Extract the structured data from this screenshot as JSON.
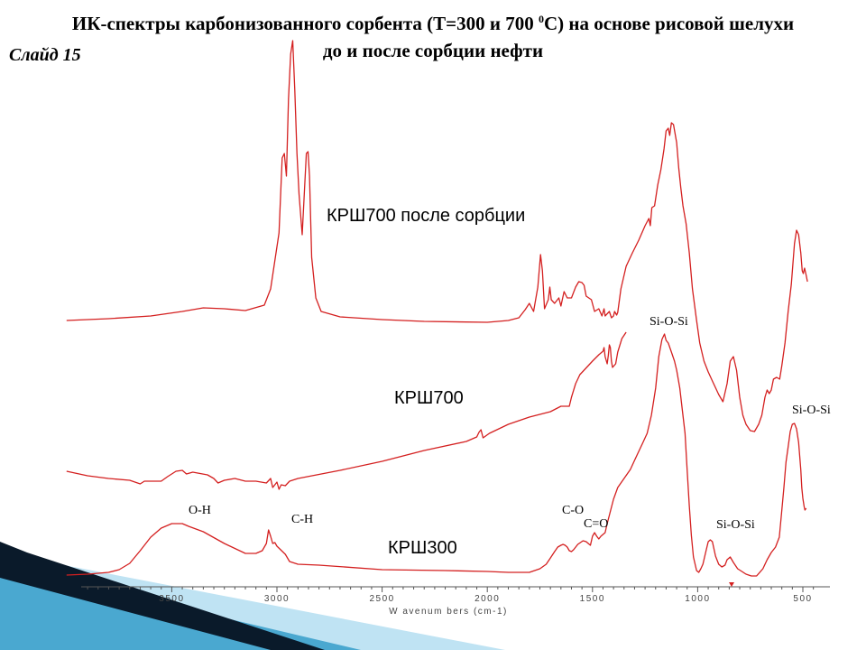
{
  "slide": {
    "title_line1_pre": "ИК-спектры карбонизованного сорбента (Т=300 и 700 ",
    "title_sup": "0",
    "title_line1_post": "С) на основе рисовой шелухи",
    "title_line2": "до и после сорбции нефти",
    "number": "Слайд 15"
  },
  "colors": {
    "spectrum": "#d42020",
    "axis": "#555555",
    "ribbon_dark": "#0a1a2a",
    "ribbon_blue": "#4aa8d0",
    "ribbon_light": "#bfe3f3"
  },
  "chart_data": {
    "type": "line",
    "title": "",
    "xlabel": "W avenum bers (cm-1)",
    "ylabel": "",
    "xlim": [
      4000,
      450
    ],
    "x_reversed": true,
    "x_ticks": [
      3500,
      3000,
      2500,
      2000,
      1500,
      1000,
      500
    ],
    "x_tick_labels": [
      "3500",
      "3000",
      "2500",
      "2000",
      "1500",
      "1000",
      "500"
    ],
    "grid": false,
    "series": [
      {
        "name": "КРШ700 после сорбции",
        "points": [
          [
            4000,
            355
          ],
          [
            3800,
            353
          ],
          [
            3600,
            350
          ],
          [
            3450,
            345
          ],
          [
            3350,
            341
          ],
          [
            3250,
            342
          ],
          [
            3150,
            344
          ],
          [
            3060,
            338
          ],
          [
            3030,
            320
          ],
          [
            2990,
            258
          ],
          [
            2975,
            175
          ],
          [
            2965,
            170
          ],
          [
            2955,
            195
          ],
          [
            2945,
            110
          ],
          [
            2935,
            60
          ],
          [
            2925,
            45
          ],
          [
            2915,
            100
          ],
          [
            2905,
            170
          ],
          [
            2895,
            215
          ],
          [
            2880,
            260
          ],
          [
            2870,
            215
          ],
          [
            2860,
            170
          ],
          [
            2852,
            168
          ],
          [
            2845,
            195
          ],
          [
            2835,
            285
          ],
          [
            2815,
            330
          ],
          [
            2790,
            345
          ],
          [
            2700,
            351
          ],
          [
            2500,
            354
          ],
          [
            2300,
            356
          ],
          [
            2000,
            357
          ],
          [
            1900,
            355
          ],
          [
            1850,
            352
          ],
          [
            1820,
            343
          ],
          [
            1800,
            336
          ],
          [
            1780,
            345
          ],
          [
            1760,
            318
          ],
          [
            1747,
            282
          ],
          [
            1738,
            300
          ],
          [
            1728,
            342
          ],
          [
            1710,
            332
          ],
          [
            1703,
            318
          ],
          [
            1696,
            332
          ],
          [
            1680,
            336
          ],
          [
            1660,
            330
          ],
          [
            1650,
            339
          ],
          [
            1635,
            323
          ],
          [
            1620,
            330
          ],
          [
            1600,
            330
          ],
          [
            1580,
            318
          ],
          [
            1565,
            312
          ],
          [
            1550,
            313
          ],
          [
            1540,
            316
          ],
          [
            1530,
            328
          ],
          [
            1505,
            332
          ],
          [
            1490,
            345
          ],
          [
            1470,
            342
          ],
          [
            1455,
            350
          ],
          [
            1445,
            342
          ],
          [
            1440,
            350
          ],
          [
            1420,
            345
          ],
          [
            1410,
            352
          ],
          [
            1400,
            350
          ],
          [
            1395,
            345
          ],
          [
            1385,
            349
          ],
          [
            1380,
            346
          ],
          [
            1365,
            320
          ],
          [
            1340,
            295
          ],
          [
            1310,
            280
          ],
          [
            1280,
            266
          ],
          [
            1250,
            250
          ],
          [
            1232,
            242
          ],
          [
            1225,
            250
          ],
          [
            1218,
            230
          ],
          [
            1205,
            228
          ],
          [
            1190,
            205
          ],
          [
            1175,
            188
          ],
          [
            1160,
            165
          ],
          [
            1150,
            145
          ],
          [
            1140,
            142
          ],
          [
            1133,
            150
          ],
          [
            1125,
            136
          ],
          [
            1115,
            138
          ],
          [
            1100,
            158
          ],
          [
            1090,
            186
          ],
          [
            1080,
            208
          ],
          [
            1070,
            228
          ],
          [
            1055,
            248
          ],
          [
            1040,
            280
          ],
          [
            1025,
            320
          ],
          [
            1005,
            355
          ],
          [
            990,
            380
          ],
          [
            970,
            400
          ],
          [
            950,
            412
          ],
          [
            930,
            422
          ],
          [
            900,
            437
          ],
          [
            880,
            445
          ],
          [
            860,
            425
          ],
          [
            845,
            400
          ],
          [
            830,
            395
          ],
          [
            815,
            410
          ],
          [
            800,
            440
          ],
          [
            785,
            460
          ],
          [
            770,
            470
          ],
          [
            750,
            477
          ],
          [
            730,
            478
          ],
          [
            710,
            470
          ],
          [
            695,
            460
          ],
          [
            680,
            440
          ],
          [
            670,
            432
          ],
          [
            660,
            436
          ],
          [
            650,
            432
          ],
          [
            640,
            420
          ],
          [
            625,
            418
          ],
          [
            610,
            420
          ],
          [
            600,
            405
          ],
          [
            585,
            380
          ],
          [
            570,
            345
          ],
          [
            555,
            315
          ],
          [
            540,
            270
          ],
          [
            530,
            255
          ],
          [
            520,
            260
          ],
          [
            510,
            280
          ],
          [
            503,
            300
          ],
          [
            498,
            303
          ],
          [
            492,
            297
          ],
          [
            484,
            305
          ],
          [
            478,
            312
          ]
        ]
      },
      {
        "name": "КРШ700",
        "points": [
          [
            4000,
            522
          ],
          [
            3900,
            527
          ],
          [
            3800,
            530
          ],
          [
            3700,
            532
          ],
          [
            3650,
            536
          ],
          [
            3630,
            533
          ],
          [
            3550,
            533
          ],
          [
            3520,
            528
          ],
          [
            3480,
            522
          ],
          [
            3450,
            521
          ],
          [
            3430,
            525
          ],
          [
            3400,
            523
          ],
          [
            3330,
            526
          ],
          [
            3300,
            530
          ],
          [
            3280,
            535
          ],
          [
            3250,
            532
          ],
          [
            3200,
            530
          ],
          [
            3150,
            533
          ],
          [
            3100,
            533
          ],
          [
            3050,
            535
          ],
          [
            3030,
            530
          ],
          [
            3020,
            540
          ],
          [
            3010,
            537
          ],
          [
            3000,
            534
          ],
          [
            2990,
            542
          ],
          [
            2980,
            537
          ],
          [
            2960,
            538
          ],
          [
            2940,
            533
          ],
          [
            2900,
            530
          ],
          [
            2700,
            521
          ],
          [
            2500,
            511
          ],
          [
            2300,
            499
          ],
          [
            2100,
            489
          ],
          [
            2050,
            484
          ],
          [
            2040,
            479
          ],
          [
            2030,
            476
          ],
          [
            2020,
            485
          ],
          [
            1990,
            480
          ],
          [
            1900,
            470
          ],
          [
            1800,
            462
          ],
          [
            1700,
            456
          ],
          [
            1650,
            450
          ],
          [
            1610,
            450
          ],
          [
            1600,
            440
          ],
          [
            1580,
            425
          ],
          [
            1560,
            415
          ],
          [
            1540,
            410
          ],
          [
            1500,
            400
          ],
          [
            1470,
            393
          ],
          [
            1450,
            389
          ],
          [
            1445,
            385
          ],
          [
            1440,
            395
          ],
          [
            1430,
            403
          ],
          [
            1425,
            394
          ],
          [
            1420,
            382
          ],
          [
            1415,
            385
          ],
          [
            1410,
            400
          ],
          [
            1405,
            407
          ],
          [
            1390,
            403
          ],
          [
            1380,
            390
          ],
          [
            1360,
            375
          ],
          [
            1340,
            368
          ]
        ]
      },
      {
        "name": "КРШ300",
        "points": [
          [
            4000,
            637
          ],
          [
            3900,
            636
          ],
          [
            3800,
            634
          ],
          [
            3750,
            631
          ],
          [
            3700,
            624
          ],
          [
            3650,
            610
          ],
          [
            3600,
            595
          ],
          [
            3550,
            585
          ],
          [
            3500,
            580
          ],
          [
            3450,
            580
          ],
          [
            3420,
            583
          ],
          [
            3350,
            589
          ],
          [
            3250,
            602
          ],
          [
            3150,
            613
          ],
          [
            3100,
            613
          ],
          [
            3070,
            610
          ],
          [
            3050,
            602
          ],
          [
            3040,
            587
          ],
          [
            3030,
            594
          ],
          [
            3020,
            602
          ],
          [
            3010,
            601
          ],
          [
            3000,
            605
          ],
          [
            2960,
            614
          ],
          [
            2940,
            622
          ],
          [
            2900,
            625
          ],
          [
            2800,
            626
          ],
          [
            2500,
            631
          ],
          [
            2200,
            632
          ],
          [
            2000,
            633
          ],
          [
            1900,
            634
          ],
          [
            1800,
            634
          ],
          [
            1750,
            630
          ],
          [
            1720,
            625
          ],
          [
            1700,
            618
          ],
          [
            1680,
            611
          ],
          [
            1665,
            606
          ],
          [
            1650,
            604
          ],
          [
            1640,
            603
          ],
          [
            1630,
            604
          ],
          [
            1620,
            606
          ],
          [
            1610,
            610
          ],
          [
            1600,
            611
          ],
          [
            1590,
            609
          ],
          [
            1570,
            603
          ],
          [
            1545,
            599
          ],
          [
            1530,
            600
          ],
          [
            1520,
            602
          ],
          [
            1510,
            604
          ],
          [
            1500,
            594
          ],
          [
            1490,
            590
          ],
          [
            1480,
            594
          ],
          [
            1470,
            597
          ],
          [
            1460,
            594
          ],
          [
            1440,
            590
          ],
          [
            1430,
            580
          ],
          [
            1400,
            553
          ],
          [
            1380,
            540
          ],
          [
            1350,
            530
          ],
          [
            1320,
            520
          ],
          [
            1300,
            510
          ],
          [
            1280,
            500
          ],
          [
            1260,
            490
          ],
          [
            1240,
            480
          ],
          [
            1220,
            460
          ],
          [
            1200,
            430
          ],
          [
            1185,
            395
          ],
          [
            1170,
            376
          ],
          [
            1158,
            370
          ],
          [
            1150,
            377
          ],
          [
            1140,
            380
          ],
          [
            1125,
            390
          ],
          [
            1110,
            400
          ],
          [
            1100,
            410
          ],
          [
            1085,
            430
          ],
          [
            1075,
            450
          ],
          [
            1060,
            480
          ],
          [
            1050,
            520
          ],
          [
            1040,
            560
          ],
          [
            1030,
            593
          ],
          [
            1020,
            617
          ],
          [
            1005,
            632
          ],
          [
            995,
            634
          ],
          [
            985,
            630
          ],
          [
            975,
            625
          ],
          [
            960,
            610
          ],
          [
            950,
            600
          ],
          [
            940,
            598
          ],
          [
            930,
            600
          ],
          [
            915,
            616
          ],
          [
            900,
            625
          ],
          [
            885,
            628
          ],
          [
            870,
            626
          ],
          [
            860,
            620
          ],
          [
            845,
            617
          ],
          [
            830,
            623
          ],
          [
            810,
            630
          ],
          [
            790,
            633
          ],
          [
            770,
            636
          ],
          [
            745,
            638
          ],
          [
            720,
            638
          ],
          [
            690,
            630
          ],
          [
            670,
            620
          ],
          [
            650,
            612
          ],
          [
            630,
            606
          ],
          [
            612,
            595
          ],
          [
            600,
            565
          ],
          [
            590,
            540
          ],
          [
            580,
            512
          ],
          [
            570,
            495
          ],
          [
            560,
            478
          ],
          [
            550,
            470
          ],
          [
            540,
            469
          ],
          [
            530,
            475
          ],
          [
            520,
            490
          ],
          [
            515,
            505
          ],
          [
            510,
            520
          ],
          [
            505,
            540
          ],
          [
            500,
            552
          ],
          [
            494,
            561
          ],
          [
            490,
            565
          ],
          [
            484,
            563
          ]
        ]
      }
    ],
    "curve_labels": [
      "КРШ700 после сорбции",
      "КРШ700",
      "КРШ300"
    ],
    "annotations": [
      "Si-O-Si",
      "Si-O-Si",
      "Si-O-Si",
      "O-H",
      "C-H",
      "C-O",
      "C=O"
    ]
  }
}
